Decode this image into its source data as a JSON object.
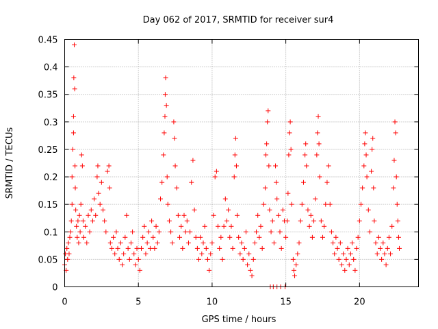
{
  "chart_data": {
    "type": "scatter",
    "title": "Day 062 of 2017, SRMTID for receiver sur4",
    "xlabel": "GPS time / hours",
    "ylabel": "SRMTID / TECUs",
    "xlim": [
      0,
      24
    ],
    "ylim": [
      0,
      0.45
    ],
    "xticks": [
      0,
      5,
      10,
      15,
      20
    ],
    "yticks": [
      0,
      0.05,
      0.1,
      0.15,
      0.2,
      0.25,
      0.3,
      0.35,
      0.4,
      0.45
    ],
    "xtick_labels": [
      "0",
      "5",
      "10",
      "15",
      "20"
    ],
    "ytick_labels": [
      "0",
      "0.05",
      "0.1",
      "0.15",
      "0.2",
      "0.25",
      "0.3",
      "0.35",
      "0.4",
      "0.45"
    ],
    "grid": true,
    "marker": "+",
    "color": "#ff0000",
    "series": [
      {
        "name": "SRMTID",
        "points": [
          [
            0.0,
            0.04
          ],
          [
            0.05,
            0.06
          ],
          [
            0.1,
            0.03
          ],
          [
            0.15,
            0.07
          ],
          [
            0.2,
            0.05
          ],
          [
            0.25,
            0.08
          ],
          [
            0.3,
            0.06
          ],
          [
            0.35,
            0.09
          ],
          [
            0.4,
            0.1
          ],
          [
            0.45,
            0.12
          ],
          [
            0.5,
            0.15
          ],
          [
            0.5,
            0.2
          ],
          [
            0.55,
            0.25
          ],
          [
            0.6,
            0.31
          ],
          [
            0.6,
            0.28
          ],
          [
            0.62,
            0.38
          ],
          [
            0.65,
            0.44
          ],
          [
            0.68,
            0.36
          ],
          [
            0.7,
            0.22
          ],
          [
            0.72,
            0.18
          ],
          [
            0.75,
            0.14
          ],
          [
            0.8,
            0.11
          ],
          [
            0.85,
            0.09
          ],
          [
            0.9,
            0.12
          ],
          [
            0.95,
            0.08
          ],
          [
            1.0,
            0.13
          ],
          [
            1.05,
            0.1
          ],
          [
            1.1,
            0.15
          ],
          [
            1.15,
            0.24
          ],
          [
            1.2,
            0.22
          ],
          [
            1.25,
            0.12
          ],
          [
            1.3,
            0.09
          ],
          [
            1.4,
            0.11
          ],
          [
            1.5,
            0.08
          ],
          [
            1.6,
            0.13
          ],
          [
            1.7,
            0.1
          ],
          [
            1.8,
            0.14
          ],
          [
            1.9,
            0.12
          ],
          [
            2.0,
            0.16
          ],
          [
            2.1,
            0.13
          ],
          [
            2.2,
            0.2
          ],
          [
            2.25,
            0.22
          ],
          [
            2.3,
            0.17
          ],
          [
            2.4,
            0.15
          ],
          [
            2.5,
            0.19
          ],
          [
            2.6,
            0.14
          ],
          [
            2.7,
            0.12
          ],
          [
            2.8,
            0.1
          ],
          [
            2.9,
            0.21
          ],
          [
            3.0,
            0.22
          ],
          [
            3.05,
            0.18
          ],
          [
            3.1,
            0.08
          ],
          [
            3.2,
            0.07
          ],
          [
            3.3,
            0.09
          ],
          [
            3.4,
            0.06
          ],
          [
            3.5,
            0.1
          ],
          [
            3.6,
            0.07
          ],
          [
            3.7,
            0.05
          ],
          [
            3.8,
            0.08
          ],
          [
            3.9,
            0.04
          ],
          [
            4.0,
            0.06
          ],
          [
            4.1,
            0.09
          ],
          [
            4.2,
            0.13
          ],
          [
            4.3,
            0.07
          ],
          [
            4.4,
            0.05
          ],
          [
            4.5,
            0.08
          ],
          [
            4.6,
            0.1
          ],
          [
            4.7,
            0.06
          ],
          [
            4.8,
            0.04
          ],
          [
            4.9,
            0.07
          ],
          [
            5.0,
            0.05
          ],
          [
            5.1,
            0.03
          ],
          [
            5.2,
            0.07
          ],
          [
            5.3,
            0.09
          ],
          [
            5.4,
            0.11
          ],
          [
            5.5,
            0.06
          ],
          [
            5.6,
            0.08
          ],
          [
            5.7,
            0.1
          ],
          [
            5.8,
            0.07
          ],
          [
            5.9,
            0.12
          ],
          [
            6.0,
            0.09
          ],
          [
            6.1,
            0.07
          ],
          [
            6.2,
            0.11
          ],
          [
            6.3,
            0.08
          ],
          [
            6.4,
            0.1
          ],
          [
            6.5,
            0.16
          ],
          [
            6.6,
            0.19
          ],
          [
            6.7,
            0.24
          ],
          [
            6.75,
            0.28
          ],
          [
            6.8,
            0.31
          ],
          [
            6.82,
            0.35
          ],
          [
            6.85,
            0.38
          ],
          [
            6.9,
            0.33
          ],
          [
            6.95,
            0.2
          ],
          [
            7.0,
            0.15
          ],
          [
            7.1,
            0.12
          ],
          [
            7.2,
            0.1
          ],
          [
            7.3,
            0.08
          ],
          [
            7.4,
            0.3
          ],
          [
            7.45,
            0.27
          ],
          [
            7.5,
            0.22
          ],
          [
            7.6,
            0.18
          ],
          [
            7.7,
            0.13
          ],
          [
            7.8,
            0.09
          ],
          [
            7.9,
            0.11
          ],
          [
            8.0,
            0.07
          ],
          [
            8.1,
            0.13
          ],
          [
            8.2,
            0.1
          ],
          [
            8.3,
            0.12
          ],
          [
            8.4,
            0.08
          ],
          [
            8.5,
            0.1
          ],
          [
            8.6,
            0.19
          ],
          [
            8.7,
            0.23
          ],
          [
            8.8,
            0.14
          ],
          [
            8.9,
            0.09
          ],
          [
            9.0,
            0.07
          ],
          [
            9.1,
            0.05
          ],
          [
            9.2,
            0.09
          ],
          [
            9.3,
            0.06
          ],
          [
            9.4,
            0.08
          ],
          [
            9.5,
            0.11
          ],
          [
            9.6,
            0.07
          ],
          [
            9.7,
            0.05
          ],
          [
            9.8,
            0.03
          ],
          [
            9.9,
            0.06
          ],
          [
            10.0,
            0.08
          ],
          [
            10.1,
            0.13
          ],
          [
            10.2,
            0.2
          ],
          [
            10.3,
            0.21
          ],
          [
            10.4,
            0.11
          ],
          [
            10.5,
            0.07
          ],
          [
            10.6,
            0.09
          ],
          [
            10.7,
            0.05
          ],
          [
            10.8,
            0.11
          ],
          [
            10.9,
            0.16
          ],
          [
            11.0,
            0.12
          ],
          [
            11.1,
            0.14
          ],
          [
            11.2,
            0.09
          ],
          [
            11.3,
            0.11
          ],
          [
            11.4,
            0.07
          ],
          [
            11.5,
            0.2
          ],
          [
            11.55,
            0.24
          ],
          [
            11.6,
            0.27
          ],
          [
            11.65,
            0.22
          ],
          [
            11.7,
            0.13
          ],
          [
            11.8,
            0.09
          ],
          [
            11.9,
            0.06
          ],
          [
            12.0,
            0.08
          ],
          [
            12.1,
            0.05
          ],
          [
            12.2,
            0.07
          ],
          [
            12.3,
            0.1
          ],
          [
            12.4,
            0.04
          ],
          [
            12.5,
            0.06
          ],
          [
            12.6,
            0.03
          ],
          [
            12.7,
            0.02
          ],
          [
            12.8,
            0.05
          ],
          [
            12.9,
            0.08
          ],
          [
            13.0,
            0.1
          ],
          [
            13.1,
            0.13
          ],
          [
            13.2,
            0.09
          ],
          [
            13.3,
            0.11
          ],
          [
            13.4,
            0.07
          ],
          [
            13.5,
            0.15
          ],
          [
            13.6,
            0.18
          ],
          [
            13.65,
            0.24
          ],
          [
            13.7,
            0.26
          ],
          [
            13.75,
            0.3
          ],
          [
            13.8,
            0.32
          ],
          [
            13.85,
            0.22
          ],
          [
            13.9,
            0.14
          ],
          [
            14.0,
            0.1
          ],
          [
            14.1,
            0.12
          ],
          [
            14.2,
            0.08
          ],
          [
            14.3,
            0.22
          ],
          [
            14.35,
            0.19
          ],
          [
            14.4,
            0.16
          ],
          [
            14.5,
            0.13
          ],
          [
            14.6,
            0.1
          ],
          [
            14.7,
            0.07
          ],
          [
            14.8,
            0.14
          ],
          [
            14.9,
            0.12
          ],
          [
            15.0,
            0.09
          ],
          [
            15.1,
            0.12
          ],
          [
            15.15,
            0.17
          ],
          [
            15.2,
            0.24
          ],
          [
            15.25,
            0.28
          ],
          [
            15.3,
            0.3
          ],
          [
            15.35,
            0.25
          ],
          [
            15.4,
            0.15
          ],
          [
            15.5,
            0.05
          ],
          [
            15.55,
            0.03
          ],
          [
            15.6,
            0.02
          ],
          [
            15.7,
            0.04
          ],
          [
            15.8,
            0.06
          ],
          [
            15.9,
            0.08
          ],
          [
            16.0,
            0.12
          ],
          [
            16.1,
            0.15
          ],
          [
            16.2,
            0.19
          ],
          [
            16.3,
            0.24
          ],
          [
            16.35,
            0.26
          ],
          [
            16.4,
            0.22
          ],
          [
            16.5,
            0.14
          ],
          [
            16.6,
            0.11
          ],
          [
            16.7,
            0.13
          ],
          [
            16.8,
            0.09
          ],
          [
            16.9,
            0.12
          ],
          [
            17.0,
            0.16
          ],
          [
            17.1,
            0.24
          ],
          [
            17.15,
            0.28
          ],
          [
            17.2,
            0.31
          ],
          [
            17.25,
            0.26
          ],
          [
            17.3,
            0.2
          ],
          [
            17.4,
            0.12
          ],
          [
            17.5,
            0.09
          ],
          [
            17.6,
            0.11
          ],
          [
            17.7,
            0.15
          ],
          [
            17.8,
            0.19
          ],
          [
            17.9,
            0.22
          ],
          [
            18.0,
            0.15
          ],
          [
            18.1,
            0.1
          ],
          [
            18.2,
            0.08
          ],
          [
            18.3,
            0.06
          ],
          [
            18.4,
            0.09
          ],
          [
            18.5,
            0.07
          ],
          [
            18.6,
            0.05
          ],
          [
            18.7,
            0.08
          ],
          [
            18.8,
            0.04
          ],
          [
            18.9,
            0.06
          ],
          [
            19.0,
            0.03
          ],
          [
            19.1,
            0.05
          ],
          [
            19.2,
            0.07
          ],
          [
            19.3,
            0.04
          ],
          [
            19.4,
            0.06
          ],
          [
            19.5,
            0.08
          ],
          [
            19.6,
            0.05
          ],
          [
            19.7,
            0.03
          ],
          [
            19.8,
            0.07
          ],
          [
            19.9,
            0.09
          ],
          [
            20.0,
            0.12
          ],
          [
            20.1,
            0.15
          ],
          [
            20.2,
            0.18
          ],
          [
            20.3,
            0.22
          ],
          [
            20.35,
            0.26
          ],
          [
            20.4,
            0.28
          ],
          [
            20.45,
            0.24
          ],
          [
            20.5,
            0.2
          ],
          [
            20.6,
            0.14
          ],
          [
            20.7,
            0.1
          ],
          [
            20.8,
            0.21
          ],
          [
            20.85,
            0.25
          ],
          [
            20.9,
            0.27
          ],
          [
            20.95,
            0.18
          ],
          [
            21.0,
            0.12
          ],
          [
            21.1,
            0.08
          ],
          [
            21.2,
            0.06
          ],
          [
            21.3,
            0.09
          ],
          [
            21.4,
            0.07
          ],
          [
            21.5,
            0.05
          ],
          [
            21.6,
            0.08
          ],
          [
            21.7,
            0.06
          ],
          [
            21.8,
            0.04
          ],
          [
            21.9,
            0.07
          ],
          [
            22.0,
            0.09
          ],
          [
            22.1,
            0.06
          ],
          [
            22.2,
            0.11
          ],
          [
            22.3,
            0.18
          ],
          [
            22.35,
            0.23
          ],
          [
            22.4,
            0.3
          ],
          [
            22.45,
            0.28
          ],
          [
            22.5,
            0.2
          ],
          [
            22.55,
            0.15
          ],
          [
            22.6,
            0.12
          ],
          [
            22.65,
            0.09
          ],
          [
            22.7,
            0.07
          ],
          [
            14.15,
            0.0
          ],
          [
            14.4,
            0.0
          ],
          [
            14.65,
            0.0
          ],
          [
            14.95,
            0.0
          ],
          [
            13.95,
            0.0
          ]
        ]
      }
    ]
  }
}
